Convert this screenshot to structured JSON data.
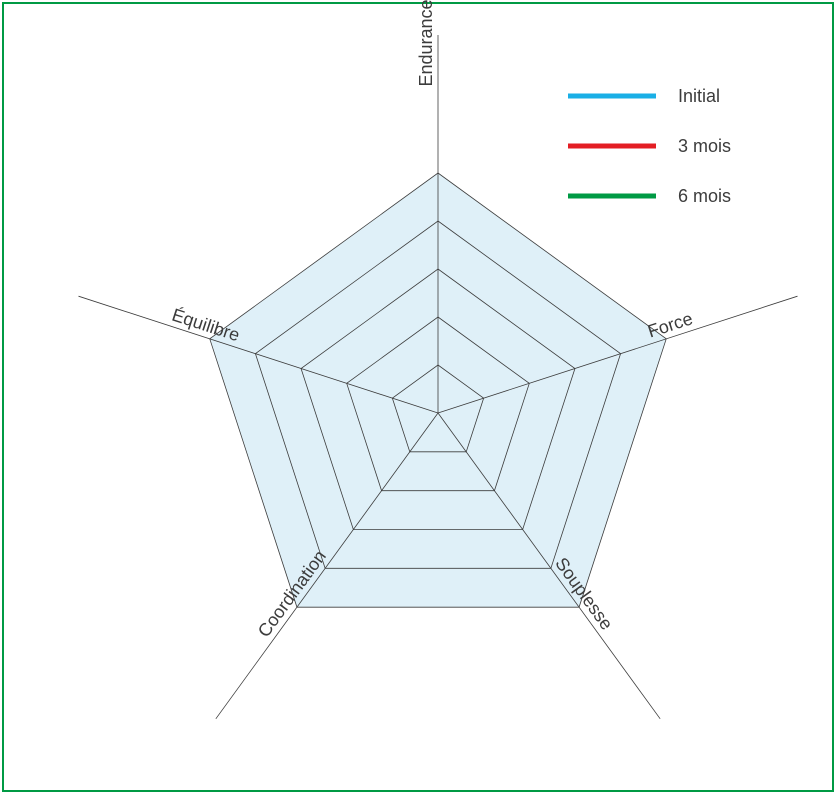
{
  "chart_data": {
    "type": "radar",
    "title": "",
    "axes": [
      "Endurance",
      "Force",
      "Souplesse",
      "Coordination",
      "Équilibre"
    ],
    "rings": 5,
    "grid": true,
    "legend_position": "top-right",
    "series": [
      {
        "name": "Initial",
        "color": "#1aafe6",
        "values": []
      },
      {
        "name": "3 mois",
        "color": "#e31e24",
        "values": []
      },
      {
        "name": "6 mois",
        "color": "#009a44",
        "values": []
      }
    ],
    "colors": {
      "fill": "#dff0f8",
      "grid_line": "#3c3c3c",
      "frame_border": "#009a44"
    }
  }
}
